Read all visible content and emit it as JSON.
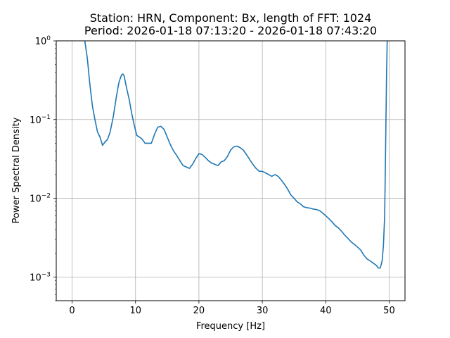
{
  "chart_data": {
    "type": "line",
    "title_line1": "Station: HRN, Component: Bx, length of FFT: 1024",
    "title_line2": "Period: 2026-01-18 07:13:20 - 2026-01-18 07:43:20",
    "xlabel": "Frequency [Hz]",
    "ylabel": "Power Spectral Density",
    "yscale": "log",
    "xlim": [
      -2.5,
      52.5
    ],
    "ylim": [
      0.0005,
      1
    ],
    "grid": true,
    "line_color": "#1f77b4",
    "xticks": [
      {
        "value": 0,
        "label": "0"
      },
      {
        "value": 10,
        "label": "10"
      },
      {
        "value": 20,
        "label": "20"
      },
      {
        "value": 30,
        "label": "30"
      },
      {
        "value": 40,
        "label": "40"
      },
      {
        "value": 50,
        "label": "50"
      }
    ],
    "yticks": [
      {
        "value": 0.001,
        "base": "10",
        "exp": "−3"
      },
      {
        "value": 0.01,
        "base": "10",
        "exp": "−2"
      },
      {
        "value": 0.1,
        "base": "10",
        "exp": "−1"
      },
      {
        "value": 1,
        "base": "10",
        "exp": "0"
      }
    ],
    "series": [
      {
        "x": [
          2.0,
          2.4,
          2.8,
          3.2,
          3.6,
          4.0,
          4.4,
          4.8,
          5.2,
          5.6,
          6.0,
          6.5,
          7.0,
          7.4,
          7.8,
          8.0,
          8.2,
          8.6,
          9.0,
          9.4,
          9.8,
          10.2,
          10.6,
          11.0,
          11.5,
          12.0,
          12.5,
          13.0,
          13.5,
          14.0,
          14.5,
          15.0,
          15.5,
          16.0,
          16.5,
          17.0,
          17.5,
          18.0,
          18.5,
          19.0,
          19.5,
          20.0,
          20.5,
          21.0,
          21.5,
          22.0,
          22.5,
          23.0,
          23.5,
          24.0,
          24.5,
          25.0,
          25.5,
          26.0,
          26.5,
          27.0,
          27.5,
          28.0,
          28.5,
          29.0,
          29.5,
          30.0,
          30.5,
          31.0,
          31.5,
          32.0,
          32.5,
          33.0,
          33.5,
          34.0,
          34.5,
          35.0,
          35.5,
          36.0,
          36.5,
          37.0,
          37.5,
          38.0,
          38.5,
          39.0,
          39.5,
          40.0,
          40.5,
          41.0,
          41.5,
          42.0,
          42.5,
          43.0,
          43.5,
          44.0,
          44.5,
          45.0,
          45.5,
          46.0,
          46.5,
          47.0,
          47.5,
          48.0,
          48.3,
          48.6,
          48.9,
          49.1,
          49.3,
          49.45,
          49.6,
          49.7
        ],
        "y": [
          1.0,
          0.6,
          0.28,
          0.15,
          0.1,
          0.07,
          0.06,
          0.047,
          0.052,
          0.056,
          0.07,
          0.11,
          0.2,
          0.3,
          0.37,
          0.38,
          0.36,
          0.25,
          0.18,
          0.12,
          0.085,
          0.063,
          0.06,
          0.057,
          0.05,
          0.05,
          0.05,
          0.065,
          0.08,
          0.082,
          0.075,
          0.06,
          0.048,
          0.04,
          0.035,
          0.03,
          0.026,
          0.025,
          0.024,
          0.027,
          0.032,
          0.037,
          0.036,
          0.033,
          0.03,
          0.028,
          0.027,
          0.026,
          0.029,
          0.03,
          0.034,
          0.041,
          0.045,
          0.046,
          0.044,
          0.041,
          0.036,
          0.031,
          0.027,
          0.024,
          0.022,
          0.022,
          0.021,
          0.02,
          0.019,
          0.02,
          0.019,
          0.017,
          0.015,
          0.013,
          0.011,
          0.01,
          0.009,
          0.0085,
          0.0078,
          0.0076,
          0.0075,
          0.0073,
          0.0072,
          0.007,
          0.0065,
          0.006,
          0.0055,
          0.005,
          0.0045,
          0.0042,
          0.0038,
          0.0034,
          0.0031,
          0.0028,
          0.0026,
          0.0024,
          0.0022,
          0.0019,
          0.0017,
          0.0016,
          0.0015,
          0.0014,
          0.0013,
          0.0013,
          0.0016,
          0.0025,
          0.006,
          0.05,
          0.4,
          1.0
        ]
      }
    ]
  }
}
